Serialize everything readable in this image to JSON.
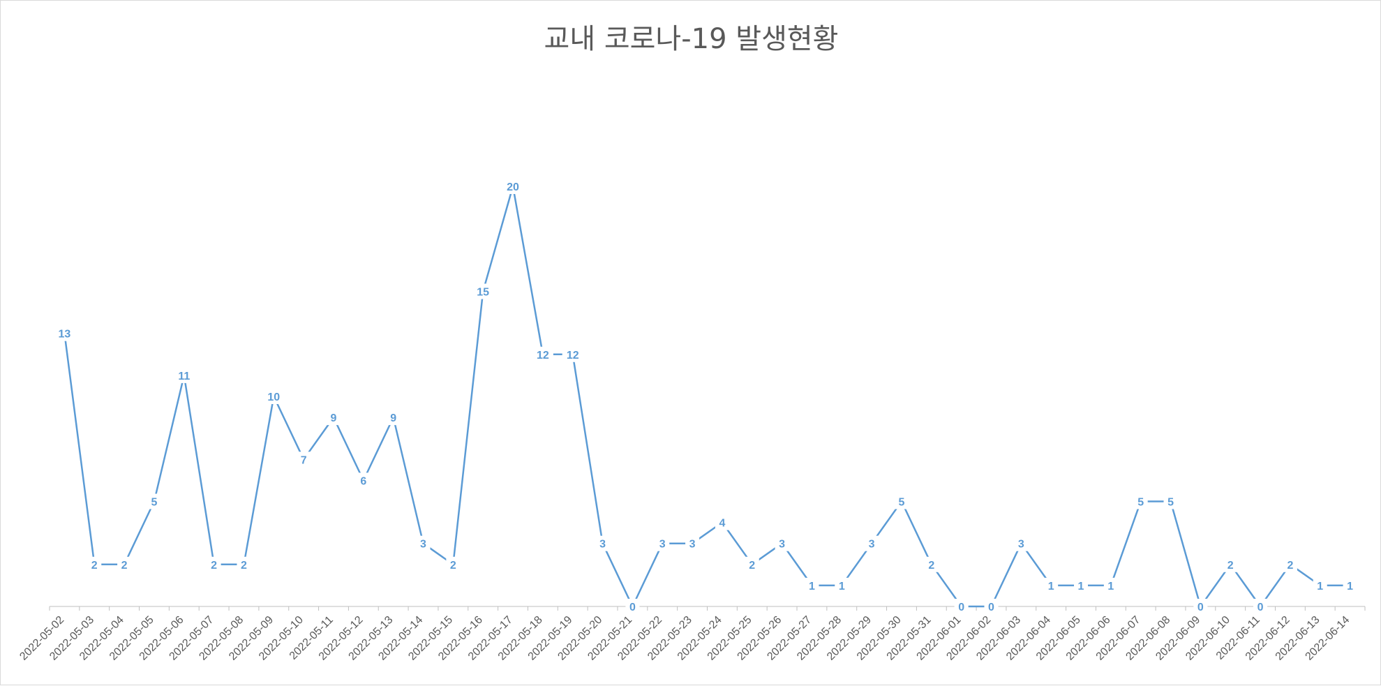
{
  "chart_data": {
    "type": "line",
    "title": "교내 코로나-19 발생현황",
    "xlabel": "",
    "ylabel": "",
    "ylim": [
      0,
      20
    ],
    "grid": false,
    "legend": "none",
    "data_labels": true,
    "line_color": "#5b9bd5",
    "categories": [
      "2022-05-02",
      "2022-05-03",
      "2022-05-04",
      "2022-05-05",
      "2022-05-06",
      "2022-05-07",
      "2022-05-08",
      "2022-05-09",
      "2022-05-10",
      "2022-05-11",
      "2022-05-12",
      "2022-05-13",
      "2022-05-14",
      "2022-05-15",
      "2022-05-16",
      "2022-05-17",
      "2022-05-18",
      "2022-05-19",
      "2022-05-20",
      "2022-05-21",
      "2022-05-22",
      "2022-05-23",
      "2022-05-24",
      "2022-05-25",
      "2022-05-26",
      "2022-05-27",
      "2022-05-28",
      "2022-05-29",
      "2022-05-30",
      "2022-05-31",
      "2022-06-01",
      "2022-06-02",
      "2022-06-03",
      "2022-06-04",
      "2022-06-05",
      "2022-06-06",
      "2022-06-07",
      "2022-06-08",
      "2022-06-09",
      "2022-06-10",
      "2022-06-11",
      "2022-06-12",
      "2022-06-13",
      "2022-06-14"
    ],
    "values": [
      13,
      2,
      2,
      5,
      11,
      2,
      2,
      10,
      7,
      9,
      6,
      9,
      3,
      2,
      15,
      20,
      12,
      12,
      3,
      0,
      3,
      3,
      4,
      2,
      3,
      1,
      1,
      3,
      5,
      2,
      0,
      0,
      3,
      1,
      1,
      1,
      5,
      5,
      0,
      2,
      0,
      2,
      1,
      1
    ]
  }
}
